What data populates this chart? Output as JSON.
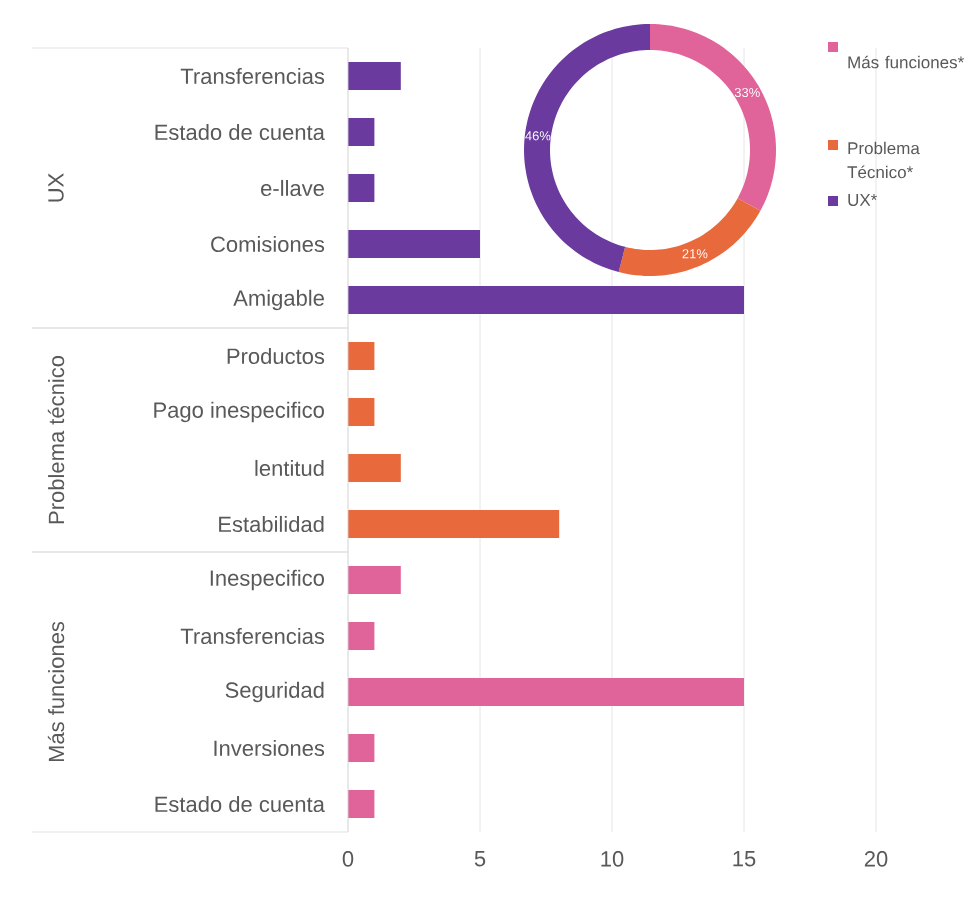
{
  "chart_data": [
    {
      "type": "bar",
      "orientation": "horizontal",
      "categories": [
        "Transferencias",
        "Estado de cuenta",
        "e-llave",
        "Comisiones",
        "Amigable",
        "Productos",
        "Pago inespecifico",
        "lentitud",
        "Estabilidad",
        "Inespecifico",
        "Transferencias",
        "Seguridad",
        "Inversiones",
        "Estado de cuenta"
      ],
      "series": [
        {
          "color": "#6b3a9e",
          "values": [
            2,
            1,
            1,
            5,
            15,
            null,
            null,
            null,
            null,
            null,
            null,
            null,
            null,
            null
          ]
        },
        {
          "color": "#e8693c",
          "values": [
            null,
            null,
            null,
            null,
            null,
            1,
            1,
            2,
            8,
            null,
            null,
            null,
            null,
            null
          ]
        },
        {
          "color": "#e0649a",
          "values": [
            null,
            null,
            null,
            null,
            null,
            null,
            null,
            null,
            null,
            2,
            1,
            15,
            1,
            1
          ]
        }
      ],
      "annotations": [
        "UX",
        "Problema técnico",
        "Más funciones"
      ],
      "xlim": [
        0,
        20
      ],
      "xticks": [
        0,
        5,
        10,
        15,
        20
      ],
      "grid": "x"
    },
    {
      "type": "donut",
      "categories": [
        "Más funciones*",
        "Problema Técnico*",
        "UX*"
      ],
      "values": [
        33,
        21,
        46
      ],
      "colors": [
        "#e0649a",
        "#e8693c",
        "#6b3a9e"
      ],
      "value_labels": [
        "33%",
        "21%",
        "46%"
      ],
      "legend": "right"
    }
  ]
}
